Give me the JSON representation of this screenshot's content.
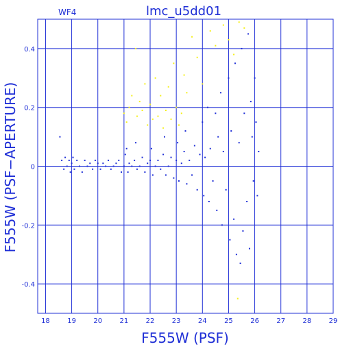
{
  "chart_data": {
    "type": "scatter",
    "title": "lmc_u5dd01",
    "panel_label": "WF4",
    "xlabel": "F555W (PSF)",
    "ylabel": "F555W (PSF−APERTURE)",
    "xlim": [
      17.7,
      29.0
    ],
    "ylim": [
      -0.5,
      0.5
    ],
    "x_ticks": [
      18,
      19,
      20,
      21,
      22,
      23,
      24,
      25,
      26,
      27,
      28,
      29
    ],
    "y_ticks": [
      -0.4,
      -0.2,
      0,
      0.2,
      0.4
    ],
    "y_tick_labels": [
      "-0.4",
      "-0.2",
      "0",
      "0.2",
      "0.4"
    ],
    "grid": true,
    "series": [
      {
        "color": "#1f2fd6",
        "points": [
          [
            18.55,
            0.1
          ],
          [
            18.62,
            0.02
          ],
          [
            18.7,
            -0.01
          ],
          [
            18.75,
            0.03
          ],
          [
            18.82,
            0.0
          ],
          [
            18.9,
            0.02
          ],
          [
            18.95,
            -0.02
          ],
          [
            19.0,
            0.01
          ],
          [
            19.05,
            0.03
          ],
          [
            19.1,
            -0.01
          ],
          [
            19.2,
            0.02
          ],
          [
            19.3,
            0.0
          ],
          [
            19.4,
            -0.02
          ],
          [
            19.5,
            0.02
          ],
          [
            19.6,
            0.0
          ],
          [
            19.7,
            0.01
          ],
          [
            19.8,
            -0.01
          ],
          [
            19.9,
            0.02
          ],
          [
            20.0,
            0.01
          ],
          [
            20.1,
            -0.01
          ],
          [
            20.2,
            0.01
          ],
          [
            20.3,
            0.0
          ],
          [
            20.4,
            0.02
          ],
          [
            20.5,
            -0.01
          ],
          [
            20.6,
            0.0
          ],
          [
            20.7,
            0.01
          ],
          [
            20.8,
            0.02
          ],
          [
            20.9,
            -0.02
          ],
          [
            21.0,
            0.0
          ],
          [
            21.05,
            0.04
          ],
          [
            21.1,
            0.06
          ],
          [
            21.15,
            -0.02
          ],
          [
            21.2,
            0.01
          ],
          [
            21.3,
            0.0
          ],
          [
            21.4,
            0.02
          ],
          [
            21.45,
            0.08
          ],
          [
            21.5,
            -0.01
          ],
          [
            21.6,
            0.0
          ],
          [
            21.7,
            0.03
          ],
          [
            21.8,
            -0.02
          ],
          [
            21.9,
            0.01
          ],
          [
            22.0,
            0.02
          ],
          [
            22.05,
            0.06
          ],
          [
            22.1,
            -0.03
          ],
          [
            22.2,
            0.0
          ],
          [
            22.3,
            0.02
          ],
          [
            22.4,
            -0.01
          ],
          [
            22.5,
            0.04
          ],
          [
            22.55,
            0.1
          ],
          [
            22.6,
            -0.03
          ],
          [
            22.7,
            0.0
          ],
          [
            22.8,
            0.03
          ],
          [
            22.9,
            -0.04
          ],
          [
            23.0,
            0.02
          ],
          [
            23.05,
            0.08
          ],
          [
            23.1,
            -0.05
          ],
          [
            23.2,
            0.01
          ],
          [
            23.3,
            0.05
          ],
          [
            23.35,
            0.12
          ],
          [
            23.4,
            -0.06
          ],
          [
            23.5,
            0.02
          ],
          [
            23.6,
            -0.03
          ],
          [
            23.7,
            0.07
          ],
          [
            23.8,
            -0.08
          ],
          [
            23.9,
            0.04
          ],
          [
            24.0,
            0.15
          ],
          [
            24.05,
            -0.1
          ],
          [
            24.1,
            0.03
          ],
          [
            24.2,
            0.2
          ],
          [
            24.25,
            -0.12
          ],
          [
            24.3,
            0.06
          ],
          [
            24.4,
            -0.05
          ],
          [
            24.5,
            0.18
          ],
          [
            24.55,
            -0.15
          ],
          [
            24.6,
            0.1
          ],
          [
            24.7,
            0.25
          ],
          [
            24.75,
            -0.2
          ],
          [
            24.8,
            0.05
          ],
          [
            24.9,
            -0.08
          ],
          [
            25.0,
            0.3
          ],
          [
            25.05,
            -0.25
          ],
          [
            25.1,
            0.12
          ],
          [
            25.2,
            -0.18
          ],
          [
            25.25,
            0.35
          ],
          [
            25.3,
            -0.3
          ],
          [
            25.4,
            0.08
          ],
          [
            25.45,
            -0.33
          ],
          [
            25.5,
            0.4
          ],
          [
            25.55,
            -0.22
          ],
          [
            25.6,
            0.18
          ],
          [
            25.7,
            -0.12
          ],
          [
            25.75,
            0.45
          ],
          [
            25.8,
            -0.28
          ],
          [
            25.85,
            0.22
          ],
          [
            25.9,
            0.1
          ],
          [
            25.95,
            -0.05
          ],
          [
            26.0,
            0.3
          ],
          [
            26.05,
            0.15
          ],
          [
            26.1,
            -0.1
          ],
          [
            26.15,
            0.05
          ]
        ]
      },
      {
        "color": "#f5f01a",
        "points": [
          [
            21.0,
            0.18
          ],
          [
            21.1,
            0.15
          ],
          [
            21.2,
            0.2
          ],
          [
            21.3,
            0.24
          ],
          [
            21.45,
            0.4
          ],
          [
            21.5,
            0.17
          ],
          [
            21.6,
            0.22
          ],
          [
            21.7,
            0.19
          ],
          [
            21.8,
            0.28
          ],
          [
            21.9,
            0.14
          ],
          [
            22.0,
            0.21
          ],
          [
            22.1,
            0.16
          ],
          [
            22.2,
            0.3
          ],
          [
            22.3,
            0.17
          ],
          [
            22.4,
            0.24
          ],
          [
            22.5,
            0.13
          ],
          [
            22.6,
            0.19
          ],
          [
            22.7,
            0.27
          ],
          [
            22.8,
            0.16
          ],
          [
            22.9,
            0.35
          ],
          [
            23.0,
            0.2
          ],
          [
            23.1,
            0.14
          ],
          [
            23.2,
            0.18
          ],
          [
            23.3,
            0.31
          ],
          [
            23.4,
            0.25
          ],
          [
            23.6,
            0.44
          ],
          [
            23.8,
            0.37
          ],
          [
            24.0,
            0.28
          ],
          [
            24.3,
            0.46
          ],
          [
            24.5,
            0.41
          ],
          [
            24.8,
            0.48
          ],
          [
            25.0,
            0.43
          ],
          [
            25.2,
            0.38
          ],
          [
            25.4,
            0.49
          ],
          [
            25.6,
            0.47
          ],
          [
            25.35,
            -0.45
          ]
        ]
      }
    ]
  }
}
